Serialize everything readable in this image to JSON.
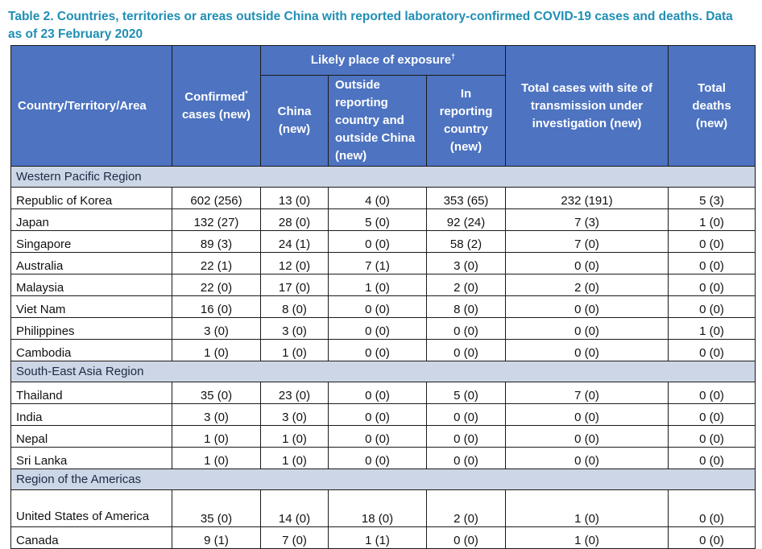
{
  "caption": "Table 2. Countries, territories or areas outside China with reported laboratory-confirmed COVID-19 cases and deaths. Data as of 23 February 2020",
  "headers": {
    "country": "Country/Territory/Area",
    "confirmed": "Confirmed",
    "confirmed_mark": "*",
    "confirmed_sub": "cases (new)",
    "exposure": "Likely place of exposure",
    "exposure_mark": "†",
    "china": "China (new)",
    "outside": "Outside reporting country and outside China (new)",
    "in_country": "In reporting country (new)",
    "investigation": "Total cases with site of transmission under investigation (new)",
    "deaths": "Total deaths (new)"
  },
  "regions": [
    {
      "name": "Western Pacific Region",
      "rows": [
        [
          "Republic of Korea",
          "602 (256)",
          "13 (0)",
          "4 (0)",
          "353 (65)",
          "232 (191)",
          "5 (3)"
        ],
        [
          "Japan",
          "132 (27)",
          "28 (0)",
          "5 (0)",
          "92 (24)",
          "7 (3)",
          "1 (0)"
        ],
        [
          "Singapore",
          "89 (3)",
          "24 (1)",
          "0 (0)",
          "58 (2)",
          "7 (0)",
          "0 (0)"
        ],
        [
          "Australia",
          "22 (1)",
          "12 (0)",
          "7 (1)",
          "3 (0)",
          "0 (0)",
          "0 (0)"
        ],
        [
          "Malaysia",
          "22 (0)",
          "17 (0)",
          "1 (0)",
          "2 (0)",
          "2 (0)",
          "0 (0)"
        ],
        [
          "Viet Nam",
          "16 (0)",
          "8 (0)",
          "0 (0)",
          "8 (0)",
          "0 (0)",
          "0 (0)"
        ],
        [
          "Philippines",
          "3 (0)",
          "3 (0)",
          "0 (0)",
          "0 (0)",
          "0 (0)",
          "1 (0)"
        ],
        [
          "Cambodia",
          "1 (0)",
          "1 (0)",
          "0 (0)",
          "0 (0)",
          "0 (0)",
          "0 (0)"
        ]
      ]
    },
    {
      "name": "South-East Asia Region",
      "rows": [
        [
          "Thailand",
          "35 (0)",
          "23 (0)",
          "0 (0)",
          "5 (0)",
          "7 (0)",
          "0 (0)"
        ],
        [
          "India",
          "3 (0)",
          "3 (0)",
          "0 (0)",
          "0 (0)",
          "0 (0)",
          "0 (0)"
        ],
        [
          "Nepal",
          "1 (0)",
          "1 (0)",
          "0 (0)",
          "0 (0)",
          "0 (0)",
          "0 (0)"
        ],
        [
          "Sri Lanka",
          "1 (0)",
          "1 (0)",
          "0 (0)",
          "0 (0)",
          "0 (0)",
          "0 (0)"
        ]
      ]
    },
    {
      "name": "Region of the Americas",
      "rows": [
        [
          "United States of America",
          "35 (0)",
          "14 (0)",
          "18 (0)",
          "2 (0)",
          "1 (0)",
          "0 (0)"
        ],
        [
          "Canada",
          "9 (1)",
          "7 (0)",
          "1 (1)",
          "0 (0)",
          "1 (0)",
          "0 (0)"
        ]
      ]
    }
  ]
}
